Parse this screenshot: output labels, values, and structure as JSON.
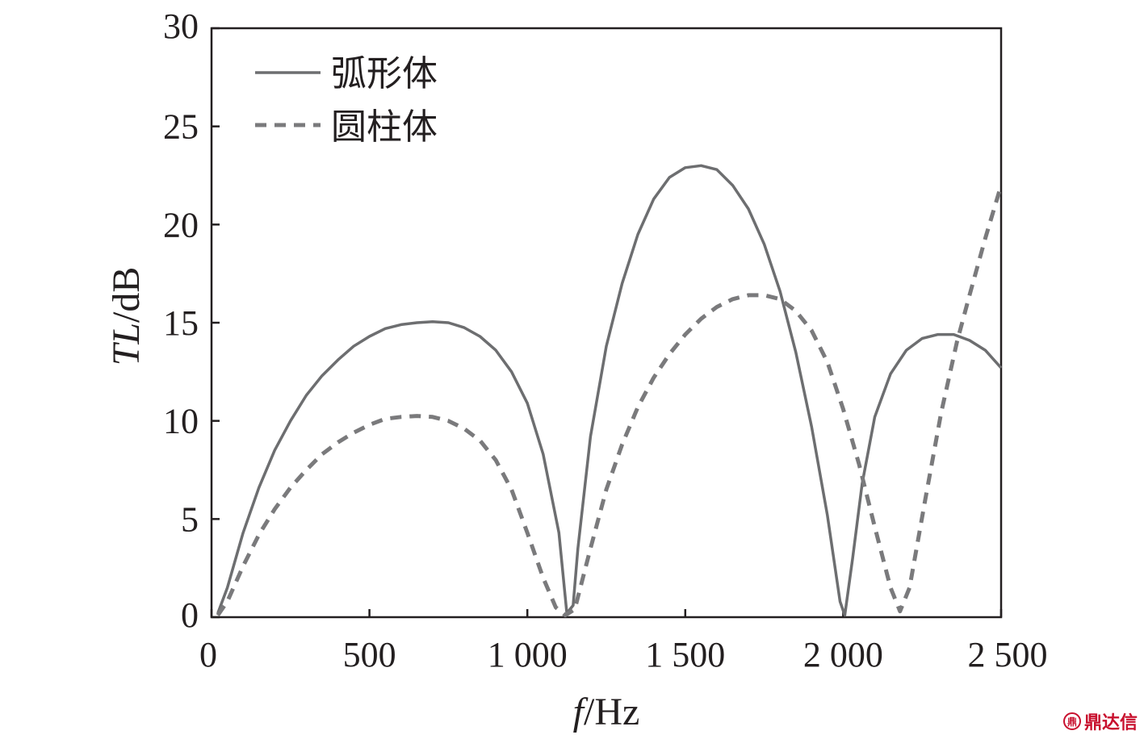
{
  "chart_data": {
    "type": "line",
    "title": "",
    "xlabel_italic": "f",
    "xlabel_rest": "/Hz",
    "ylabel_italic": "TL",
    "ylabel_rest": "/dB",
    "xlim": [
      0,
      2500
    ],
    "ylim": [
      0,
      30
    ],
    "x_ticks": [
      0,
      500,
      1000,
      1500,
      2000,
      2500
    ],
    "x_tick_labels": [
      "0",
      "500",
      "1 000",
      "1 500",
      "2 000",
      "2 500"
    ],
    "y_ticks": [
      0,
      5,
      10,
      15,
      20,
      25,
      30
    ],
    "y_tick_labels": [
      "0",
      "5",
      "10",
      "15",
      "20",
      "25",
      "30"
    ],
    "grid": false,
    "legend_position": "top-left",
    "series": [
      {
        "name": "弧形体",
        "style": "solid",
        "color": "#6d6e70",
        "points": [
          [
            20,
            0.2
          ],
          [
            50,
            1.5
          ],
          [
            100,
            4.3
          ],
          [
            150,
            6.6
          ],
          [
            200,
            8.5
          ],
          [
            250,
            10.0
          ],
          [
            300,
            11.3
          ],
          [
            350,
            12.3
          ],
          [
            400,
            13.1
          ],
          [
            450,
            13.8
          ],
          [
            500,
            14.3
          ],
          [
            550,
            14.7
          ],
          [
            600,
            14.9
          ],
          [
            650,
            15.0
          ],
          [
            700,
            15.05
          ],
          [
            750,
            15.0
          ],
          [
            800,
            14.75
          ],
          [
            850,
            14.3
          ],
          [
            900,
            13.6
          ],
          [
            950,
            12.5
          ],
          [
            1000,
            10.9
          ],
          [
            1050,
            8.3
          ],
          [
            1100,
            4.3
          ],
          [
            1125,
            0.2
          ],
          [
            1145,
            0.6
          ],
          [
            1160,
            3.5
          ],
          [
            1200,
            9.2
          ],
          [
            1250,
            13.8
          ],
          [
            1300,
            17.0
          ],
          [
            1350,
            19.5
          ],
          [
            1400,
            21.3
          ],
          [
            1450,
            22.4
          ],
          [
            1500,
            22.9
          ],
          [
            1550,
            23.0
          ],
          [
            1600,
            22.8
          ],
          [
            1650,
            22.0
          ],
          [
            1700,
            20.8
          ],
          [
            1750,
            19.0
          ],
          [
            1800,
            16.6
          ],
          [
            1850,
            13.5
          ],
          [
            1900,
            9.7
          ],
          [
            1950,
            5.2
          ],
          [
            1990,
            0.8
          ],
          [
            2005,
            0.1
          ],
          [
            2030,
            3.0
          ],
          [
            2060,
            6.8
          ],
          [
            2100,
            10.2
          ],
          [
            2150,
            12.4
          ],
          [
            2200,
            13.6
          ],
          [
            2250,
            14.2
          ],
          [
            2300,
            14.4
          ],
          [
            2350,
            14.4
          ],
          [
            2400,
            14.1
          ],
          [
            2450,
            13.6
          ],
          [
            2500,
            12.7
          ]
        ]
      },
      {
        "name": "圆柱体",
        "style": "dashed",
        "color": "#7a7a7c",
        "points": [
          [
            20,
            0.1
          ],
          [
            50,
            0.8
          ],
          [
            100,
            2.6
          ],
          [
            150,
            4.2
          ],
          [
            200,
            5.5
          ],
          [
            250,
            6.6
          ],
          [
            300,
            7.5
          ],
          [
            350,
            8.3
          ],
          [
            400,
            8.9
          ],
          [
            450,
            9.4
          ],
          [
            500,
            9.8
          ],
          [
            550,
            10.1
          ],
          [
            600,
            10.2
          ],
          [
            650,
            10.25
          ],
          [
            700,
            10.2
          ],
          [
            750,
            10.0
          ],
          [
            800,
            9.6
          ],
          [
            850,
            9.0
          ],
          [
            900,
            8.0
          ],
          [
            950,
            6.5
          ],
          [
            1000,
            4.3
          ],
          [
            1050,
            2.0
          ],
          [
            1090,
            0.5
          ],
          [
            1120,
            0.1
          ],
          [
            1150,
            0.4
          ],
          [
            1200,
            3.5
          ],
          [
            1250,
            6.5
          ],
          [
            1300,
            8.8
          ],
          [
            1350,
            10.7
          ],
          [
            1400,
            12.2
          ],
          [
            1450,
            13.4
          ],
          [
            1500,
            14.4
          ],
          [
            1550,
            15.2
          ],
          [
            1600,
            15.8
          ],
          [
            1650,
            16.2
          ],
          [
            1700,
            16.4
          ],
          [
            1750,
            16.4
          ],
          [
            1800,
            16.2
          ],
          [
            1850,
            15.6
          ],
          [
            1900,
            14.6
          ],
          [
            1950,
            13.0
          ],
          [
            2000,
            10.6
          ],
          [
            2050,
            7.8
          ],
          [
            2100,
            4.6
          ],
          [
            2150,
            1.5
          ],
          [
            2180,
            0.3
          ],
          [
            2210,
            1.5
          ],
          [
            2260,
            6.0
          ],
          [
            2310,
            10.4
          ],
          [
            2360,
            14.0
          ],
          [
            2400,
            16.4
          ],
          [
            2450,
            19.3
          ],
          [
            2500,
            22.0
          ]
        ]
      }
    ]
  },
  "watermark": {
    "logo_glyph": "鼎",
    "text": "鼎达信"
  }
}
